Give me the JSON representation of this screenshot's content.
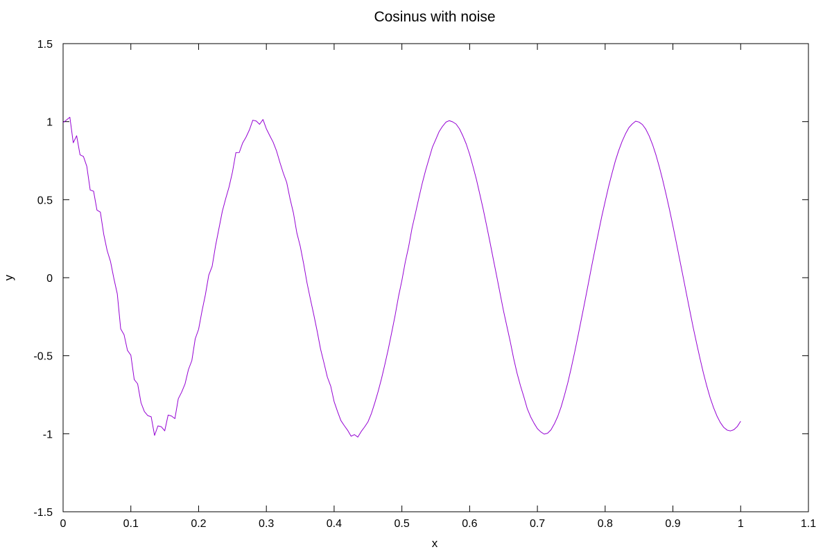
{
  "chart_data": {
    "type": "line",
    "title": "Cosinus with noise",
    "xlabel": "x",
    "ylabel": "y",
    "xlim": [
      0,
      1.1
    ],
    "ylim": [
      -1.5,
      1.5
    ],
    "xticks": [
      0,
      0.1,
      0.2,
      0.3,
      0.4,
      0.5,
      0.6,
      0.7,
      0.8,
      0.9,
      1,
      1.1
    ],
    "xtick_labels": [
      "0",
      "0.1",
      "0.2",
      "0.3",
      "0.4",
      "0.5",
      "0.6",
      "0.7",
      "0.8",
      "0.9",
      "1",
      "1.1"
    ],
    "yticks": [
      -1.5,
      -1,
      -0.5,
      0,
      0.5,
      1,
      1.5
    ],
    "ytick_labels": [
      "-1.5",
      "-1",
      "-0.5",
      "0",
      "0.5",
      "1",
      "1.5"
    ],
    "grid": false,
    "legend": "none",
    "series": [
      {
        "color": "#9400d3",
        "x": [
          0,
          0.005,
          0.01,
          0.015,
          0.02,
          0.025,
          0.03,
          0.035,
          0.04,
          0.045,
          0.05,
          0.055,
          0.06,
          0.065,
          0.07,
          0.075,
          0.08,
          0.085,
          0.09,
          0.095,
          0.1,
          0.105,
          0.11,
          0.115,
          0.12,
          0.125,
          0.13,
          0.135,
          0.14,
          0.145,
          0.15,
          0.155,
          0.16,
          0.165,
          0.17,
          0.175,
          0.18,
          0.185,
          0.19,
          0.195,
          0.2,
          0.205,
          0.21,
          0.215,
          0.22,
          0.225,
          0.23,
          0.235,
          0.24,
          0.245,
          0.25,
          0.255,
          0.26,
          0.265,
          0.27,
          0.275,
          0.28,
          0.285,
          0.29,
          0.295,
          0.3,
          0.305,
          0.31,
          0.315,
          0.32,
          0.325,
          0.33,
          0.335,
          0.34,
          0.345,
          0.35,
          0.355,
          0.36,
          0.365,
          0.37,
          0.375,
          0.38,
          0.385,
          0.39,
          0.395,
          0.4,
          0.405,
          0.41,
          0.415,
          0.42,
          0.425,
          0.43,
          0.435,
          0.44,
          0.445,
          0.45,
          0.455,
          0.46,
          0.465,
          0.47,
          0.475,
          0.48,
          0.485,
          0.49,
          0.495,
          0.5,
          0.505,
          0.51,
          0.515,
          0.52,
          0.525,
          0.53,
          0.535,
          0.54,
          0.545,
          0.55,
          0.555,
          0.56,
          0.565,
          0.57,
          0.575,
          0.58,
          0.585,
          0.59,
          0.595,
          0.6,
          0.605,
          0.61,
          0.615,
          0.62,
          0.625,
          0.63,
          0.635,
          0.64,
          0.645,
          0.65,
          0.655,
          0.66,
          0.665,
          0.67,
          0.675,
          0.68,
          0.685,
          0.69,
          0.695,
          0.7,
          0.705,
          0.71,
          0.715,
          0.72,
          0.725,
          0.73,
          0.735,
          0.74,
          0.745,
          0.75,
          0.755,
          0.76,
          0.765,
          0.77,
          0.775,
          0.78,
          0.785,
          0.79,
          0.795,
          0.8,
          0.805,
          0.81,
          0.815,
          0.82,
          0.825,
          0.83,
          0.835,
          0.84,
          0.845,
          0.85,
          0.855,
          0.86,
          0.865,
          0.87,
          0.875,
          0.88,
          0.885,
          0.89,
          0.895,
          0.9,
          0.905,
          0.91,
          0.915,
          0.92,
          0.925,
          0.93,
          0.935,
          0.94,
          0.945,
          0.95,
          0.955,
          0.96,
          0.965,
          0.97,
          0.975,
          0.98,
          0.985,
          0.99,
          0.995,
          1
        ],
        "y": [
          0.9939,
          1.0106,
          1.0283,
          0.8648,
          0.9097,
          0.7876,
          0.7769,
          0.7137,
          0.5618,
          0.5542,
          0.4331,
          0.4201,
          0.2779,
          0.1743,
          0.1034,
          -0.0061,
          -0.1039,
          -0.3276,
          -0.3658,
          -0.4657,
          -0.4967,
          -0.6524,
          -0.6801,
          -0.8016,
          -0.8581,
          -0.8838,
          -0.8913,
          -1.0107,
          -0.9497,
          -0.9553,
          -0.9813,
          -0.8804,
          -0.8865,
          -0.9033,
          -0.7757,
          -0.7331,
          -0.6802,
          -0.5886,
          -0.5315,
          -0.3917,
          -0.3306,
          -0.2138,
          -0.1093,
          0.0166,
          0.073,
          0.2048,
          0.3151,
          0.4255,
          0.507,
          0.5826,
          0.6776,
          0.8015,
          0.8022,
          0.8633,
          0.9009,
          0.9474,
          1.0093,
          1.0039,
          0.9829,
          1.0137,
          0.9542,
          0.9104,
          0.8684,
          0.8123,
          0.7383,
          0.6701,
          0.6107,
          0.5046,
          0.4137,
          0.2867,
          0.2013,
          0.0899,
          -0.0335,
          -0.1374,
          -0.2375,
          -0.3433,
          -0.4577,
          -0.5456,
          -0.6368,
          -0.6954,
          -0.794,
          -0.8573,
          -0.9156,
          -0.9481,
          -0.9781,
          -1.0158,
          -1.0058,
          -1.0214,
          -0.9857,
          -0.9564,
          -0.9236,
          -0.8705,
          -0.8024,
          -0.7283,
          -0.6459,
          -0.5538,
          -0.4564,
          -0.3506,
          -0.2422,
          -0.1211,
          -0.0181,
          0.1002,
          0.1993,
          0.3182,
          0.4125,
          0.5101,
          0.6038,
          0.6874,
          0.7618,
          0.8355,
          0.8855,
          0.9365,
          0.9701,
          0.9968,
          1.0064,
          0.9985,
          0.9847,
          0.9541,
          0.9092,
          0.8565,
          0.7905,
          0.7122,
          0.6298,
          0.5354,
          0.4394,
          0.3349,
          0.2281,
          0.1176,
          0.0086,
          -0.1024,
          -0.2128,
          -0.3116,
          -0.4108,
          -0.5187,
          -0.6124,
          -0.6922,
          -0.7633,
          -0.8389,
          -0.8914,
          -0.9322,
          -0.9673,
          -0.9883,
          -1.0024,
          -0.9968,
          -0.9751,
          -0.9372,
          -0.8893,
          -0.8279,
          -0.7528,
          -0.6713,
          -0.5774,
          -0.4773,
          -0.3716,
          -0.2628,
          -0.1536,
          -0.0417,
          0.0714,
          0.1803,
          0.2872,
          0.3922,
          0.4883,
          0.5826,
          0.6668,
          0.7475,
          0.8151,
          0.8734,
          0.9219,
          0.9614,
          0.9853,
          1.0028,
          0.9971,
          0.9813,
          0.9515,
          0.9077,
          0.8526,
          0.7862,
          0.7097,
          0.6249,
          0.5326,
          0.4355,
          0.3323,
          0.2254,
          0.1162,
          0.0074,
          -0.1035,
          -0.2126,
          -0.3204,
          -0.4212,
          -0.5184,
          -0.6108,
          -0.6943,
          -0.7699,
          -0.8329,
          -0.8863,
          -0.9283,
          -0.9593,
          -0.9766,
          -0.9817,
          -0.9741,
          -0.9538,
          -0.9198
        ]
      }
    ]
  }
}
